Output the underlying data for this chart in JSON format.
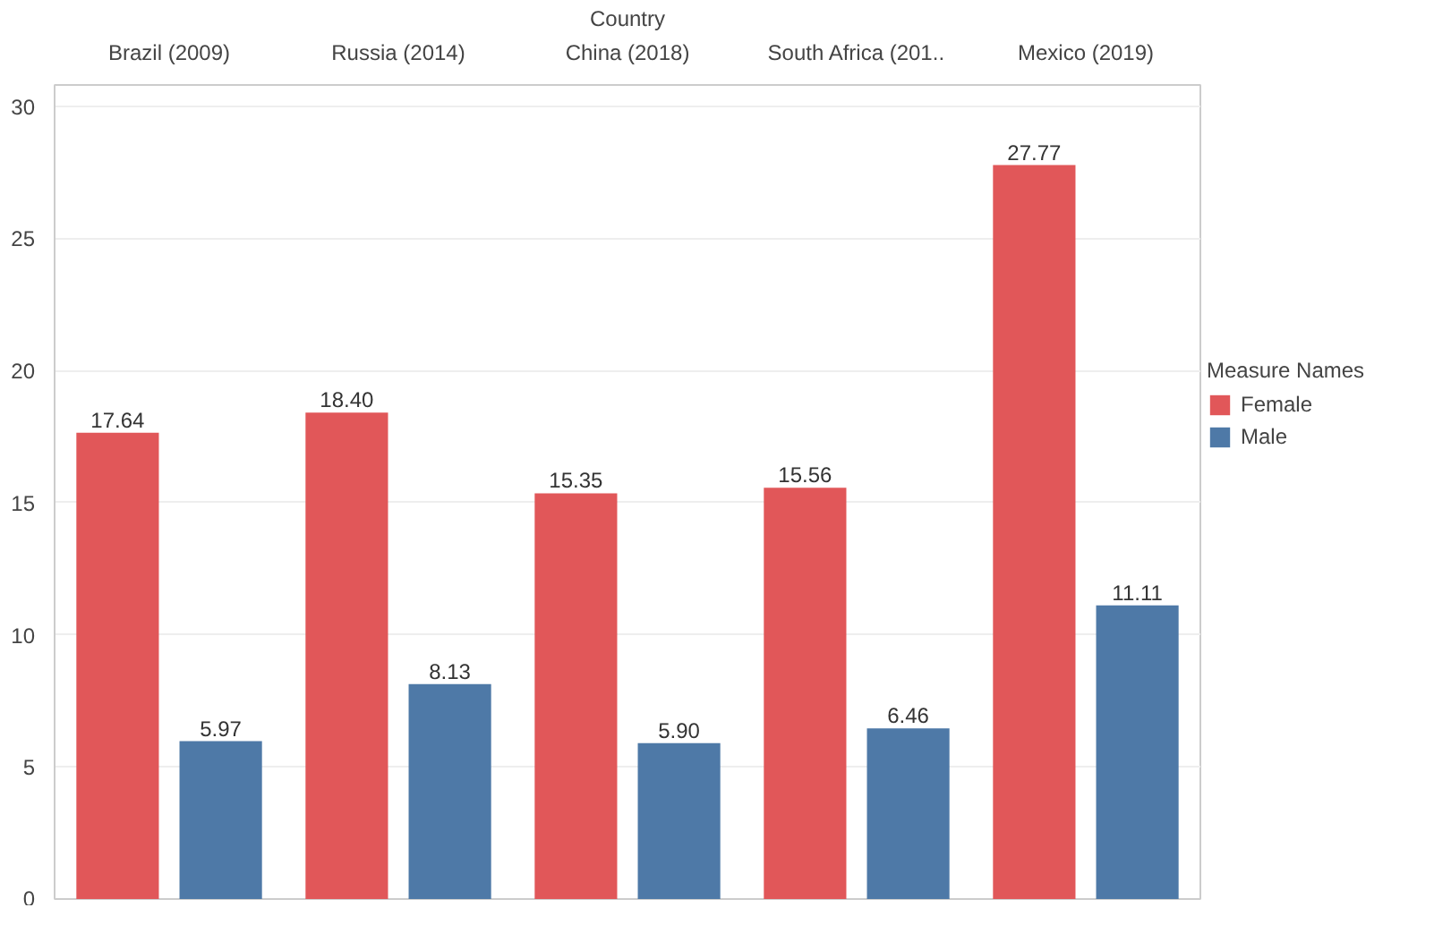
{
  "chart_data": {
    "type": "bar",
    "xlabel": "Country",
    "legend_title": "Measure Names",
    "categories": [
      "Brazil (2009)",
      "Russia (2014)",
      "China (2018)",
      "South Africa (201..",
      "Mexico (2019)"
    ],
    "series": [
      {
        "name": "Female",
        "color": "#e15759",
        "values": [
          17.64,
          18.4,
          15.35,
          15.56,
          27.77
        ],
        "value_labels": [
          "17.64",
          "18.40",
          "15.35",
          "15.56",
          "27.77"
        ]
      },
      {
        "name": "Male",
        "color": "#4e79a7",
        "values": [
          5.97,
          8.13,
          5.9,
          6.46,
          11.11
        ],
        "value_labels": [
          "5.97",
          "8.13",
          "5.90",
          "6.46",
          "11.11"
        ]
      }
    ],
    "ylim": [
      0,
      30.8
    ],
    "yticks": [
      0,
      5,
      10,
      15,
      20,
      25,
      30
    ],
    "grid": "y",
    "legend": "top right"
  }
}
